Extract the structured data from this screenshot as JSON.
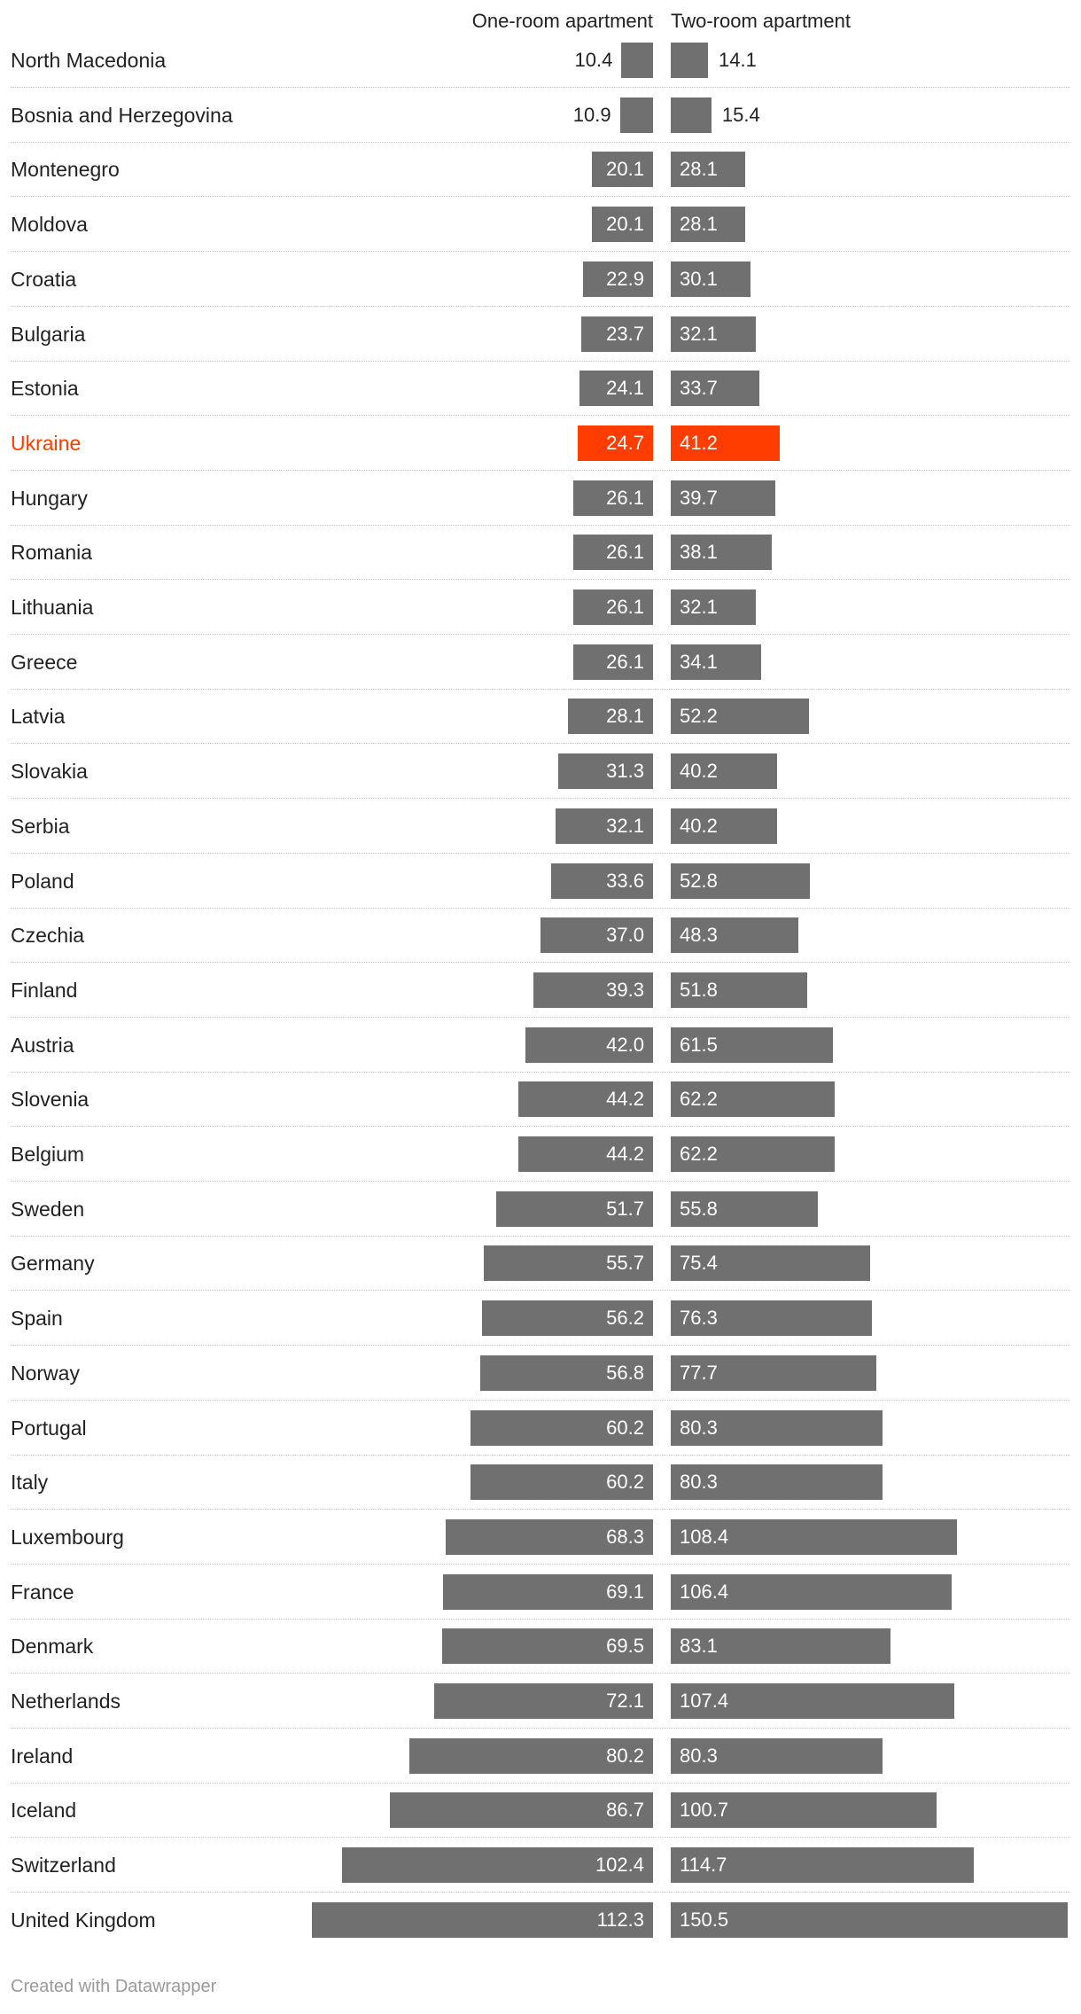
{
  "chart_data": {
    "type": "bar",
    "series": [
      {
        "name": "One-room apartment"
      },
      {
        "name": "Two-room apartment"
      }
    ],
    "highlight_color": "#ff3d00",
    "bar_color": "#707070",
    "rows": [
      {
        "country": "North Macedonia",
        "one": "10.4",
        "two": "14.1"
      },
      {
        "country": "Bosnia and Herzegovina",
        "one": "10.9",
        "two": "15.4"
      },
      {
        "country": "Montenegro",
        "one": "20.1",
        "two": "28.1"
      },
      {
        "country": "Moldova",
        "one": "20.1",
        "two": "28.1"
      },
      {
        "country": "Croatia",
        "one": "22.9",
        "two": "30.1"
      },
      {
        "country": "Bulgaria",
        "one": "23.7",
        "two": "32.1"
      },
      {
        "country": "Estonia",
        "one": "24.1",
        "two": "33.7"
      },
      {
        "country": "Ukraine",
        "one": "24.7",
        "two": "41.2",
        "highlight": true
      },
      {
        "country": "Hungary",
        "one": "26.1",
        "two": "39.7"
      },
      {
        "country": "Romania",
        "one": "26.1",
        "two": "38.1"
      },
      {
        "country": "Lithuania",
        "one": "26.1",
        "two": "32.1"
      },
      {
        "country": "Greece",
        "one": "26.1",
        "two": "34.1"
      },
      {
        "country": "Latvia",
        "one": "28.1",
        "two": "52.2"
      },
      {
        "country": "Slovakia",
        "one": "31.3",
        "two": "40.2"
      },
      {
        "country": "Serbia",
        "one": "32.1",
        "two": "40.2"
      },
      {
        "country": "Poland",
        "one": "33.6",
        "two": "52.8"
      },
      {
        "country": "Czechia",
        "one": "37.0",
        "two": "48.3"
      },
      {
        "country": "Finland",
        "one": "39.3",
        "two": "51.8"
      },
      {
        "country": "Austria",
        "one": "42.0",
        "two": "61.5"
      },
      {
        "country": "Slovenia",
        "one": "44.2",
        "two": "62.2"
      },
      {
        "country": "Belgium",
        "one": "44.2",
        "two": "62.2"
      },
      {
        "country": "Sweden",
        "one": "51.7",
        "two": "55.8"
      },
      {
        "country": "Germany",
        "one": "55.7",
        "two": "75.4"
      },
      {
        "country": "Spain",
        "one": "56.2",
        "two": "76.3"
      },
      {
        "country": "Norway",
        "one": "56.8",
        "two": "77.7"
      },
      {
        "country": "Portugal",
        "one": "60.2",
        "two": "80.3"
      },
      {
        "country": "Italy",
        "one": "60.2",
        "two": "80.3"
      },
      {
        "country": "Luxembourg",
        "one": "68.3",
        "two": "108.4"
      },
      {
        "country": "France",
        "one": "69.1",
        "two": "106.4"
      },
      {
        "country": "Denmark",
        "one": "69.5",
        "two": "83.1"
      },
      {
        "country": "Netherlands",
        "one": "72.1",
        "two": "107.4"
      },
      {
        "country": "Ireland",
        "one": "80.2",
        "two": "80.3"
      },
      {
        "country": "Iceland",
        "one": "86.7",
        "two": "100.7"
      },
      {
        "country": "Switzerland",
        "one": "102.4",
        "two": "114.7"
      },
      {
        "country": "United Kingdom",
        "one": "112.3",
        "two": "150.5"
      }
    ]
  },
  "footer": {
    "credit": "Created with Datawrapper"
  }
}
